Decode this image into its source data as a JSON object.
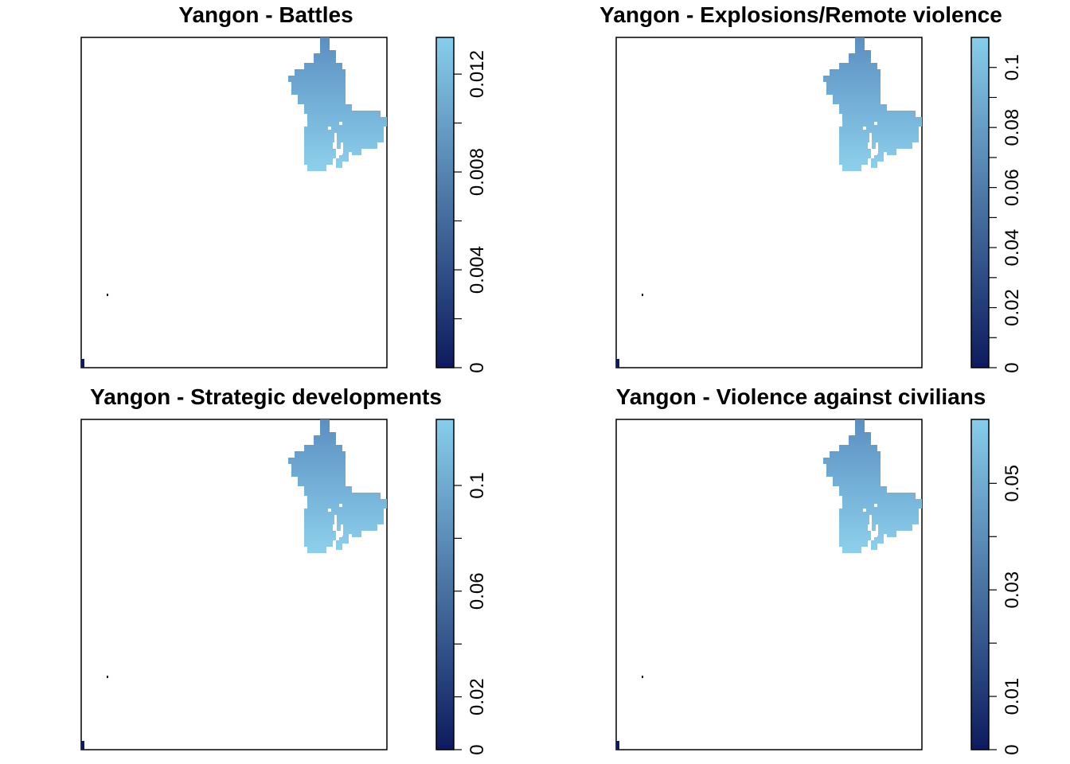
{
  "chart_data": [
    {
      "type": "heatmap",
      "title": "Yangon -  Battles",
      "colorbar": {
        "min": 0,
        "max": 0.0135,
        "ticks": [
          0,
          0.002,
          0.004,
          0.006,
          0.008,
          0.01,
          0.012
        ],
        "tick_labels": [
          "0",
          "",
          "0.004",
          "",
          "0.008",
          "",
          "0.012"
        ],
        "colors": [
          "#0d1b5e",
          "#87ceeb"
        ]
      },
      "region_value_range": [
        0.0095,
        0.0132
      ],
      "grid": false,
      "legend": "right"
    },
    {
      "type": "heatmap",
      "title": "Yangon -  Explosions/Remote violence",
      "colorbar": {
        "min": 0,
        "max": 0.11,
        "ticks": [
          0,
          0.01,
          0.02,
          0.03,
          0.04,
          0.05,
          0.06,
          0.07,
          0.08,
          0.09,
          0.1
        ],
        "tick_labels": [
          "0",
          "",
          "0.02",
          "",
          "0.04",
          "",
          "0.06",
          "",
          "0.08",
          "",
          "0.1"
        ],
        "colors": [
          "#0d1b5e",
          "#87ceeb"
        ]
      },
      "region_value_range": [
        0.075,
        0.105
      ],
      "grid": false,
      "legend": "right"
    },
    {
      "type": "heatmap",
      "title": "Yangon -  Strategic developments",
      "colorbar": {
        "min": 0,
        "max": 0.125,
        "ticks": [
          0,
          0.02,
          0.04,
          0.06,
          0.08,
          0.1
        ],
        "tick_labels": [
          "0",
          "0.02",
          "",
          "0.06",
          "",
          "0.1"
        ],
        "colors": [
          "#0d1b5e",
          "#87ceeb"
        ]
      },
      "region_value_range": [
        0.085,
        0.12
      ],
      "grid": false,
      "legend": "right"
    },
    {
      "type": "heatmap",
      "title": "Yangon -  Violence against civilians",
      "colorbar": {
        "min": 0,
        "max": 0.062,
        "ticks": [
          0,
          0.01,
          0.02,
          0.03,
          0.04,
          0.05
        ],
        "tick_labels": [
          "0",
          "0.01",
          "",
          "0.03",
          "",
          "0.05"
        ],
        "colors": [
          "#0d1b5e",
          "#87ceeb"
        ]
      },
      "region_value_range": [
        0.042,
        0.06
      ],
      "grid": false,
      "legend": "right"
    }
  ]
}
